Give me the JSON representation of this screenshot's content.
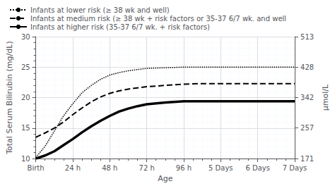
{
  "chart_data": {
    "type": "line",
    "xlabel": "Age",
    "ylabel": "Total Serum Bilirubin (mg/dL)",
    "y2label": "μmol/L",
    "xlim": [
      0,
      168
    ],
    "xticks": [
      {
        "value": 0,
        "label": "Birth"
      },
      {
        "value": 24,
        "label": "24 h"
      },
      {
        "value": 48,
        "label": "48 h"
      },
      {
        "value": 72,
        "label": "72 h"
      },
      {
        "value": 96,
        "label": "96 h"
      },
      {
        "value": 120,
        "label": "5 Days"
      },
      {
        "value": 144,
        "label": "6 Days"
      },
      {
        "value": 168,
        "label": "7 Days"
      }
    ],
    "ylim": [
      10,
      30
    ],
    "yticks": [
      10,
      15,
      20,
      25,
      30
    ],
    "y2lim": [
      171,
      513
    ],
    "y2ticks": [
      171,
      257,
      342,
      428,
      513
    ],
    "grid": true,
    "legend": "upper left",
    "x": [
      0,
      6,
      12,
      18,
      24,
      30,
      36,
      42,
      48,
      54,
      60,
      66,
      72,
      84,
      96,
      108,
      120,
      144,
      168
    ],
    "series": [
      {
        "name": "Infants at lower risk (≥ 38 wk and well)",
        "color": "#000000",
        "line_style": "dotted",
        "values": [
          10.2,
          12.0,
          14.5,
          17.0,
          19.0,
          20.8,
          22.0,
          23.0,
          23.7,
          24.1,
          24.4,
          24.6,
          24.8,
          24.9,
          25.0,
          25.0,
          25.0,
          25.0,
          25.0
        ]
      },
      {
        "name": "Infants at medium risk (≥ 38 wk + risk factors or 35-37 6/7 wk. and well",
        "color": "#000000",
        "line_style": "dashed",
        "values": [
          13.5,
          14.2,
          15.0,
          16.0,
          17.2,
          18.3,
          19.3,
          20.1,
          20.7,
          21.1,
          21.4,
          21.6,
          21.8,
          22.0,
          22.2,
          22.3,
          22.3,
          22.3,
          22.3
        ]
      },
      {
        "name": "Infants at higher risk (35-37 6/7 wk. + risk factors)",
        "color": "#000000",
        "line_style": "solid",
        "values": [
          10.0,
          10.5,
          11.2,
          12.2,
          13.2,
          14.3,
          15.3,
          16.2,
          17.0,
          17.7,
          18.2,
          18.6,
          18.9,
          19.2,
          19.4,
          19.4,
          19.4,
          19.4,
          19.4
        ]
      }
    ]
  }
}
